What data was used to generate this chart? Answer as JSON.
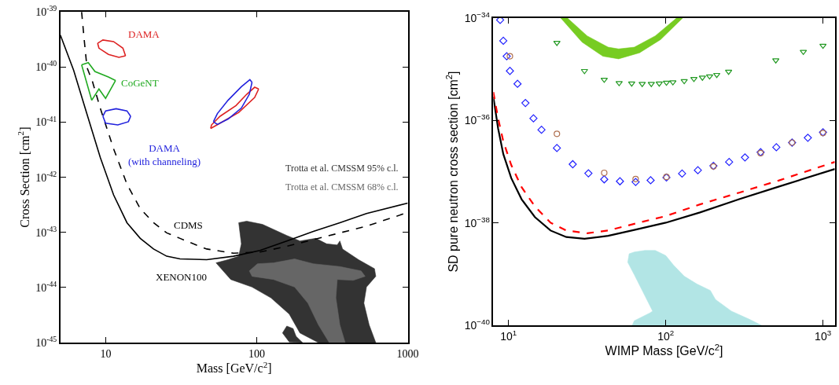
{
  "chart_data": [
    {
      "type": "line",
      "xlabel": "Mass [GeV/c$^{2}$]",
      "ylabel": "Cross Section [cm$^{2}$]",
      "log": "xy",
      "legend": "right",
      "xlim": [
        5,
        1000
      ],
      "ylim": [
        1e-45,
        1e-39
      ],
      "xticks": [
        10,
        100,
        1000
      ],
      "yticks": [
        {
          "value": 1e-45,
          "label": "10$^{-45}$"
        },
        {
          "value": 1e-44,
          "label": "10$^{-44}$"
        },
        {
          "value": 1e-43,
          "label": "10$^{-43}$"
        },
        {
          "value": 1e-42,
          "label": "10$^{-42}$"
        },
        {
          "value": 1e-41,
          "label": "10$^{-41}$"
        },
        {
          "value": 1e-40,
          "label": "10$^{-40}$"
        },
        {
          "value": 1e-39,
          "label": "10$^{-39}$"
        }
      ],
      "annotations": [
        "DAMA",
        "CoGeNT",
        "DAMA\n(with channeling)",
        "CDMS",
        "XENON100"
      ],
      "series": [
        {
          "name": "Trotta et al. CMSSM 95% c.l.",
          "type": "area",
          "color": "#333333",
          "x": [
            53.7,
            64.5,
            75.9,
            79.0,
            75.9,
            85.7,
            109,
            158,
            193,
            246,
            290,
            341,
            355,
            370,
            472,
            602,
            614,
            533,
            512,
            555,
            614,
            256,
            193,
            164,
            124,
            93,
            67.2,
            53.7
          ],
          "values": [
            2.8e-44,
            3.2e-44,
            3.7e-44,
            6.2e-44,
            1.5e-43,
            1.6e-43,
            1.4e-43,
            8.8e-44,
            7e-44,
            7.8e-44,
            6.2e-44,
            5.9e-44,
            7e-44,
            5e-44,
            3.2e-44,
            2.2e-44,
            1.6e-44,
            1.02e-44,
            5.2e-45,
            2.1e-45,
            1e-45,
            1e-45,
            1.5e-45,
            3.3e-45,
            6.5e-45,
            1.02e-44,
            1.4e-44,
            2.8e-44
          ]
        },
        {
          "type": "area",
          "color": "#333333",
          "x": [
            148,
            158,
            174,
            182,
            201,
            164,
            148
          ],
          "values": [
            1.5e-45,
            2e-45,
            1.8e-45,
            1.3e-45,
            1e-45,
            1.03e-45,
            1.5e-45
          ]
        },
        {
          "name": "Trotta et al. CMSSM 68% c.l.",
          "type": "area",
          "color": "#666666",
          "x": [
            89.2,
            101,
            129,
            178,
            237,
            355,
            491,
            522,
            435,
            341,
            334,
            355,
            385,
            302,
            256,
            218,
            178,
            129,
            93,
            89.2
          ],
          "values": [
            2e-44,
            2.7e-44,
            2.8e-44,
            3.3e-44,
            2.7e-44,
            2.4e-44,
            2e-44,
            1.6e-44,
            1.35e-44,
            1.4e-44,
            6.5e-45,
            2.1e-45,
            1e-45,
            1e-45,
            2.1e-45,
            5.2e-45,
            1.02e-44,
            1.4e-44,
            1.6e-44,
            2e-44
          ]
        },
        {
          "color": "#000000",
          "line_style": "solid",
          "x": [
            5.0,
            6.12,
            7.5,
            9.18,
            11.25,
            13.8,
            16.9,
            20.7,
            25.3,
            31.0,
            46.6,
            70.0,
            105,
            158,
            237,
            355,
            533,
            1000
          ],
          "values": [
            3.8e-40,
            8.7e-41,
            1.4e-41,
            2.3e-42,
            4.8e-43,
            1.5e-43,
            7.8e-44,
            5e-44,
            3.7e-44,
            3.3e-44,
            3.2e-44,
            3.7e-44,
            4.7e-44,
            7e-44,
            1.04e-43,
            1.5e-43,
            2.2e-43,
            3.4e-43
          ]
        },
        {
          "color": "#000000",
          "line_style": "dashed",
          "x": [
            6.91,
            7.2,
            7.5,
            8.13,
            9.18,
            11.25,
            13.8,
            16.9,
            20.7,
            25.3,
            31.0,
            38.0,
            46.6,
            70,
            105,
            158,
            237,
            355,
            533,
            1000
          ],
          "values": [
            1e-39,
            3e-40,
            9.8e-41,
            5.6e-41,
            1.8e-41,
            3.3e-42,
            7.5e-43,
            2.7e-43,
            1.5e-43,
            9.8e-44,
            7.8e-44,
            6.2e-44,
            5e-44,
            4.2e-44,
            4.4e-44,
            5.6e-44,
            7.4e-44,
            9.8e-44,
            1.3e-43,
            2.3e-43
          ]
        },
        {
          "color": "#dd2222",
          "line_style": "solid",
          "x": [
            8.82,
            9.56,
            11.25,
            12.97,
            13.5
          ],
          "values": [
            2.7e-40,
            3.1e-40,
            2.9e-40,
            2.2e-40,
            1.6e-40
          ]
        },
        {
          "color": "#dd2222",
          "line_style": "solid",
          "x": [
            8.82,
            9.0,
            10.4,
            12.2,
            13.5
          ],
          "values": [
            2.7e-40,
            2.2e-40,
            1.7e-40,
            1.5e-40,
            1.6e-40
          ]
        },
        {
          "color": "#dd2222",
          "line_style": "solid",
          "x": [
            49.5,
            57.1,
            75.9,
            96.8,
            102.9
          ],
          "values": [
            7.7e-42,
            9.6e-42,
            1.5e-41,
            2.8e-41,
            4e-41
          ]
        },
        {
          "color": "#dd2222",
          "line_style": "solid",
          "x": [
            49.5,
            50.1,
            57.1,
            72.8,
            85.7,
            96.8,
            102.9
          ],
          "values": [
            7.7e-42,
            8.9e-42,
            1.28e-41,
            2e-41,
            3.2e-41,
            4.3e-41,
            4e-41
          ]
        },
        {
          "color": "#2222dd",
          "line_style": "solid",
          "x": [
            51.6,
            54.8,
            64.5,
            79.0,
            89.2,
            93.0
          ],
          "values": [
            1.02e-41,
            9.1e-42,
            1.14e-41,
            1.8e-41,
            3.2e-41,
            5.3e-41
          ]
        },
        {
          "color": "#2222dd",
          "line_style": "solid",
          "x": [
            51.6,
            54.8,
            64.5,
            79.0,
            90.0,
            93.0
          ],
          "values": [
            1.02e-41,
            1.43e-41,
            2.5e-41,
            4.4e-41,
            5.9e-41,
            5.3e-41
          ]
        },
        {
          "color": "#2222dd",
          "line_style": "solid",
          "x": [
            9.56,
            9.96,
            11.7,
            13.8,
            14.6
          ],
          "values": [
            1.28e-41,
            1.6e-41,
            1.75e-41,
            1.6e-41,
            1.28e-41
          ]
        },
        {
          "color": "#2222dd",
          "line_style": "solid",
          "x": [
            9.56,
            9.96,
            12.0,
            14.1,
            14.6
          ],
          "values": [
            1.28e-41,
            9.6e-42,
            8.9e-42,
            1.02e-41,
            1.28e-41
          ]
        },
        {
          "color": "#22aa22",
          "line_style": "solid",
          "x": [
            6.91,
            7.65,
            8.47,
            10.4,
            11.6
          ],
          "values": [
            1.1e-40,
            1.2e-40,
            8.3e-41,
            6.6e-41,
            5.7e-41
          ]
        },
        {
          "color": "#22aa22",
          "line_style": "solid",
          "x": [
            6.91,
            7.5,
            8.06,
            9.0,
            9.96,
            11.6
          ],
          "values": [
            1.1e-40,
            5e-41,
            2.5e-41,
            4e-41,
            2.7e-41,
            5.7e-41
          ]
        }
      ]
    },
    {
      "type": "line",
      "xlabel": "WIMP Mass [GeV/c$^{2}$]",
      "ylabel": "SD pure neutron cross section [cm$^{2}$]",
      "log": "xy",
      "xlim": [
        8,
        1189
      ],
      "ylim": [
        1e-40,
        1e-34
      ],
      "xticks": [
        {
          "value": 10,
          "label": "10$^{1}$"
        },
        {
          "value": 100,
          "label": "10$^{2}$"
        },
        {
          "value": 1000,
          "label": "10$^{3}$"
        }
      ],
      "yticks": [
        {
          "value": 1e-40,
          "label": "10$^{−40}$"
        },
        {
          "value": 1e-38,
          "label": "10$^{−38}$"
        },
        {
          "value": 1e-36,
          "label": "10$^{−36}$"
        },
        {
          "value": 1e-34,
          "label": "10$^{−34}$"
        }
      ],
      "series": [
        {
          "type": "area",
          "color": "#77cc22",
          "x": [
            21.5,
            29.3,
            39.8,
            50.1,
            68.1,
            92.6,
            128,
            117,
            85.8,
            63.1,
            50.1,
            43.0,
            31.6,
            23.7,
            21.5
          ],
          "values": [
            1e-34,
            3.4e-35,
            1.8e-35,
            1.6e-35,
            2.1e-35,
            3.8e-35,
            1e-34,
            1e-34,
            4.5e-35,
            2.7e-35,
            2.5e-35,
            2.7e-35,
            4.5e-35,
            1e-34,
            1e-34
          ]
        },
        {
          "type": "area",
          "color": "#b2e5e5",
          "x": [
            61.2,
            63.1,
            79.4,
            82.5,
            73.6,
            63.1,
            57.3,
            58.5,
            63.1,
            73.6,
            85.8,
            100,
            112,
            131,
            158,
            192,
            207,
            261,
            342,
            406,
            61.2
          ],
          "values": [
            1e-40,
            1.23e-40,
            1.75e-40,
            1.9e-40,
            3.8e-40,
            9.7e-40,
            1.7e-39,
            2.5e-39,
            2.7e-39,
            2.9e-39,
            2.9e-39,
            2.3e-39,
            1.5e-39,
            9.1e-40,
            6.4e-40,
            4.8e-40,
            3.2e-40,
            1.9e-40,
            1.3e-40,
            1e-40,
            1e-40
          ]
        },
        {
          "color": "#000000",
          "line_style": "solid",
          "x": [
            8.0,
            8.58,
            9.26,
            10.4,
            12.1,
            14.7,
            18.5,
            23.3,
            30.4,
            43.0,
            63.1,
            100,
            165,
            293,
            521,
            1189
          ],
          "values": [
            2.9e-36,
            7e-37,
            2.2e-37,
            7.5e-38,
            2.9e-38,
            1.3e-38,
            7.1e-39,
            5.3e-39,
            4.9e-39,
            5.6e-39,
            7.3e-39,
            1.01e-38,
            1.6e-38,
            2.9e-38,
            5.1e-38,
            1.13e-37
          ]
        },
        {
          "color": "#ff0000",
          "line_style": "dashed",
          "x": [
            8.0,
            8.58,
            9.26,
            10.4,
            12.1,
            14.7,
            18.5,
            23.3,
            31.6,
            43.0,
            63.1,
            100,
            165,
            293,
            521,
            1189
          ],
          "values": [
            3.6e-36,
            1.1e-36,
            3.9e-37,
            1.35e-37,
            5e-38,
            2.1e-38,
            1.01e-38,
            7.1e-39,
            6.3e-39,
            7.1e-39,
            9.6e-39,
            1.36e-38,
            2.3e-38,
            3.9e-38,
            6.7e-38,
            1.55e-37
          ]
        },
        {
          "type": "scatter",
          "marker": "diamond",
          "color": "#2222ff",
          "x": [
            8.84,
            9.26,
            9.73,
            10.2,
            11.4,
            12.8,
            14.4,
            16.2,
            20.3,
            25.6,
            32.2,
            40.6,
            51.1,
            64.3,
            80.1,
            101,
            127,
            160,
            201,
            253,
            319,
            401,
            505,
            636,
            801,
            1000
          ],
          "values": [
            9.2e-35,
            3.6e-35,
            1.8e-35,
            9.3e-36,
            5.2e-36,
            2.2e-36,
            1.1e-36,
            6.6e-37,
            2.9e-37,
            1.4e-37,
            9.3e-38,
            7.1e-38,
            6.5e-38,
            6.3e-38,
            6.8e-38,
            7.7e-38,
            9.2e-38,
            1.07e-37,
            1.3e-37,
            1.55e-37,
            1.9e-37,
            2.4e-37,
            3e-37,
            3.7e-37,
            4.6e-37,
            5.9e-37
          ]
        },
        {
          "type": "scatter",
          "marker": "circle",
          "color": "#b07050",
          "x": [
            10.2,
            20.3,
            40.6,
            64.3,
            101,
            201,
            401,
            636,
            1000
          ],
          "values": [
            1.8e-35,
            5.5e-37,
            9.5e-38,
            7.2e-38,
            7.9e-38,
            1.27e-37,
            2.3e-37,
            3.7e-37,
            5.7e-37
          ]
        },
        {
          "type": "scatter",
          "marker": "triangle",
          "color": "#229922",
          "x": [
            20.3,
            30.4,
            40.6,
            50.5,
            60.7,
            70.8,
            80.9,
            90.9,
            101,
            111,
            131,
            151,
            171,
            190,
            211,
            251,
            501,
            750,
            1000
          ],
          "values": [
            3.3e-35,
            9.3e-36,
            6.3e-36,
            5.4e-36,
            5.3e-36,
            5.2e-36,
            5.2e-36,
            5.3e-36,
            5.5e-36,
            5.6e-36,
            5.9e-36,
            6.5e-36,
            6.9e-36,
            7.3e-36,
            7.8e-36,
            9e-36,
            1.5e-35,
            2.2e-35,
            2.9e-35
          ]
        }
      ]
    }
  ]
}
